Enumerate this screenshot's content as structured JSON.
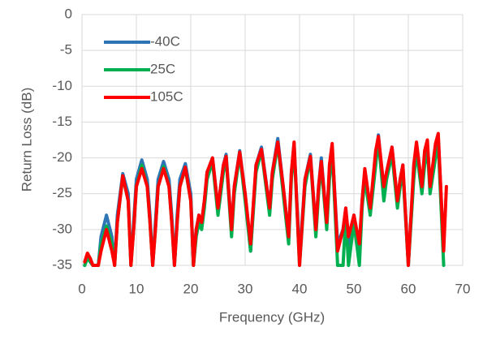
{
  "chart_data": {
    "type": "line",
    "xlabel": "Frequency (GHz)",
    "ylabel": "Return Loss (dB)",
    "xlim": [
      0,
      70
    ],
    "xticks": [
      0,
      10,
      20,
      30,
      40,
      50,
      60,
      70
    ],
    "ylim": [
      -35,
      0
    ],
    "yticks": [
      0,
      -5,
      -10,
      -15,
      -20,
      -25,
      -30,
      -35
    ],
    "grid": true,
    "legend": "upper left",
    "x": [
      0.5,
      1,
      1.5,
      2,
      3,
      3.5,
      4.5,
      5.5,
      6,
      6.5,
      7.5,
      8.5,
      9,
      9.5,
      10,
      11,
      12,
      12.5,
      13,
      13.5,
      14,
      15,
      16,
      16.5,
      17,
      17.5,
      18,
      19,
      20,
      20.5,
      21,
      21.5,
      22,
      22.5,
      23,
      24,
      25,
      26,
      26.5,
      27.5,
      28,
      29,
      30,
      31,
      32,
      33,
      34.5,
      35,
      36,
      37,
      38,
      38.5,
      39,
      40,
      41,
      42,
      43,
      43.5,
      44,
      45,
      45.5,
      46,
      47,
      48,
      48.5,
      49,
      50,
      51,
      51.5,
      52,
      53,
      54,
      54.5,
      55.5,
      56,
      57,
      58,
      58.5,
      59,
      60,
      61,
      61.5,
      62.5,
      63,
      63.5,
      64,
      65,
      65.5,
      66.5,
      67
    ],
    "series": [
      {
        "name": "-40C",
        "color": "#2e75b6",
        "values": [
          -35,
          -33.5,
          -34,
          -35,
          -35,
          -31,
          -28,
          -31,
          -35,
          -28,
          -22.2,
          -25,
          -35,
          -29,
          -23,
          -20.3,
          -23,
          -28,
          -35,
          -29,
          -23,
          -20.5,
          -23,
          -28,
          -35,
          -28,
          -23,
          -20.8,
          -25,
          -35,
          -30,
          -28,
          -29,
          -26,
          -22,
          -20,
          -27,
          -21,
          -19.5,
          -30,
          -24,
          -19,
          -25,
          -33,
          -21,
          -18.5,
          -27,
          -22,
          -17.3,
          -24,
          -31,
          -22,
          -18,
          -34,
          -23,
          -19.5,
          -30,
          -24,
          -20,
          -29,
          -22,
          -18.5,
          -32,
          -30,
          -27,
          -33,
          -28,
          -33,
          -26,
          -22,
          -27,
          -20,
          -16.8,
          -25,
          -22,
          -18.5,
          -26,
          -23,
          -21,
          -35,
          -22,
          -18,
          -24,
          -20,
          -18,
          -24,
          -19,
          -17,
          -33,
          null
        ]
      },
      {
        "name": "25C",
        "color": "#00b050",
        "values": [
          -35,
          -34,
          -34.5,
          -35,
          -35,
          -32,
          -29.5,
          -32,
          -35,
          -29,
          -22.6,
          -26,
          -35,
          -30,
          -24,
          -21,
          -24,
          -29,
          -35,
          -30,
          -24,
          -21.2,
          -24,
          -29,
          -35,
          -29,
          -24,
          -21.5,
          -26,
          -35,
          -31,
          -29,
          -30,
          -27,
          -23,
          -20.5,
          -28,
          -22,
          -20,
          -31,
          -25,
          -19.5,
          -26,
          -33,
          -22,
          -19,
          -28,
          -23,
          -18,
          -25,
          -32,
          -23,
          -18.5,
          -35,
          -24,
          -20,
          -31,
          -25,
          -21,
          -30,
          -23,
          -19,
          -35,
          -35,
          -28,
          -35,
          -29,
          -35,
          -27,
          -23,
          -28,
          -21,
          -17.5,
          -26,
          -23,
          -19.5,
          -27,
          -24,
          -22,
          -35,
          -23,
          -19,
          -25,
          -21,
          -18.5,
          -25,
          -20,
          -18,
          -35,
          null
        ]
      },
      {
        "name": "105C",
        "color": "#ff0000",
        "values": [
          -34.5,
          -33.3,
          -34,
          -35,
          -35,
          -33,
          -30,
          -33,
          -35,
          -29,
          -22.5,
          -26,
          -35,
          -30,
          -24,
          -21.5,
          -24,
          -29,
          -35,
          -30,
          -24,
          -21.5,
          -24,
          -29,
          -35,
          -29,
          -24,
          -21.3,
          -26,
          -35,
          -30,
          -28,
          -29,
          -26,
          -22,
          -20,
          -27,
          -21,
          -19.8,
          -30,
          -24,
          -19.2,
          -25,
          -32,
          -21,
          -18.8,
          -27,
          -22,
          -17.8,
          -24,
          -31,
          -22,
          -17.8,
          -35,
          -23,
          -19.8,
          -30,
          -24,
          -20.5,
          -29,
          -21,
          -18,
          -33,
          -30,
          -27,
          -31,
          -28,
          -32,
          -26,
          -21.5,
          -27,
          -19,
          -17,
          -24,
          -22,
          -18.5,
          -26,
          -23,
          -21,
          -35,
          -21,
          -17.8,
          -24,
          -19,
          -17.5,
          -24,
          -18,
          -16.6,
          -33,
          -24
        ]
      }
    ]
  }
}
